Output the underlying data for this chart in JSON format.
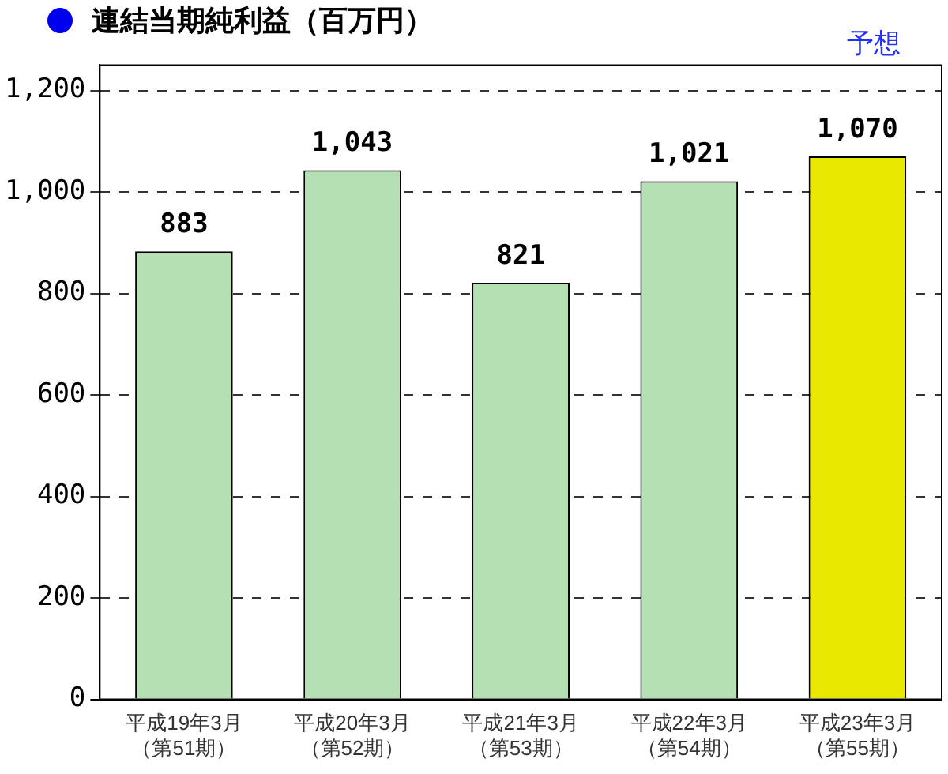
{
  "chart_data": {
    "type": "bar",
    "title": "連結当期純利益（百万円）",
    "categories": [
      "平成19年3月（第51期）",
      "平成20年3月（第52期）",
      "平成21年3月（第53期）",
      "平成22年3月（第54期）",
      "平成23年3月（第55期）"
    ],
    "values": [
      883,
      1043,
      821,
      1021,
      1070
    ],
    "value_labels": [
      "883",
      "1,043",
      "821",
      "1,021",
      "1,070"
    ],
    "colors": [
      "#b4e0b4",
      "#b4e0b4",
      "#b4e0b4",
      "#b4e0b4",
      "#e8e800"
    ],
    "ylim": [
      0,
      1250
    ],
    "yticks": [
      {
        "value": 0,
        "label": "0"
      },
      {
        "value": 200,
        "label": "200"
      },
      {
        "value": 400,
        "label": "400"
      },
      {
        "value": 600,
        "label": "600"
      },
      {
        "value": 800,
        "label": "800"
      },
      {
        "value": 1000,
        "label": "1,000"
      },
      {
        "value": 1200,
        "label": "1,200"
      }
    ],
    "grid": "y",
    "annotations": [
      "予想"
    ]
  }
}
